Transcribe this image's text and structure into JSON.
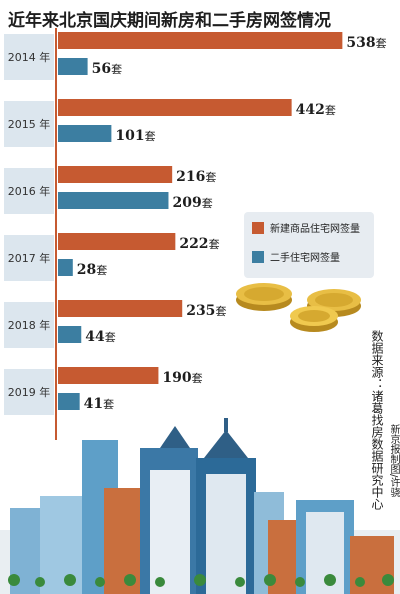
{
  "title": "近年来北京国庆期间新房和二手房网签情况",
  "unit": "套",
  "chart_data": {
    "type": "bar",
    "orientation": "horizontal",
    "categories": [
      "2014 年",
      "2015 年",
      "2016 年",
      "2017 年",
      "2018 年",
      "2019 年"
    ],
    "series": [
      {
        "name": "新建商品住宅网签量",
        "values": [
          538,
          442,
          216,
          222,
          235,
          190
        ]
      },
      {
        "name": "二手住宅网签量",
        "values": [
          56,
          101,
          209,
          28,
          44,
          41
        ]
      }
    ],
    "xlim": [
      0,
      560
    ],
    "legend_position": "right"
  },
  "legend": {
    "new_label": "新建商品住宅网签量",
    "second_label": "二手住宅网签量"
  },
  "source": "数据来源：诸葛找房数据研究中心",
  "credit": "新京报制图/许骁",
  "colors": {
    "new": "#c65a31",
    "second": "#3c7ea1",
    "year_box": "#dce6ee",
    "title": "#1e1e1e"
  }
}
